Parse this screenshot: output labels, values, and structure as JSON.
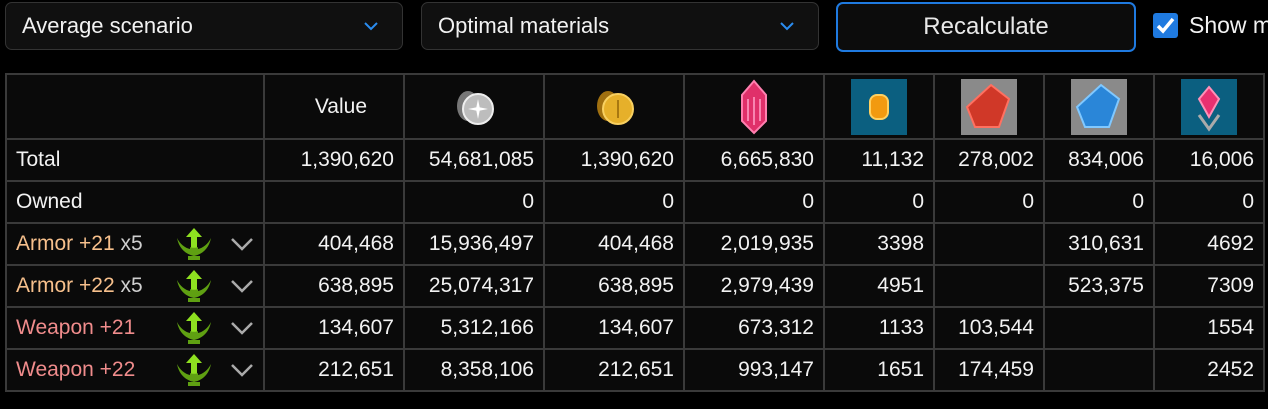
{
  "toolbar": {
    "scenario_select": "Average scenario",
    "materials_select": "Optimal materials",
    "recalculate_label": "Recalculate",
    "show_checkbox_label": "Show m",
    "show_checkbox_checked": true,
    "accent_color": "#1f7ae0"
  },
  "table": {
    "header": {
      "value_label": "Value",
      "icons": [
        "silver-coin-icon",
        "gold-coin-icon",
        "pink-crystal-icon",
        "orange-gem-icon",
        "red-crystal-icon",
        "blue-crystal-icon",
        "pink-gem-ornament-icon"
      ]
    },
    "rows": [
      {
        "label": "Total",
        "cells": [
          "1,390,620",
          "54,681,085",
          "1,390,620",
          "6,665,830",
          "11,132",
          "278,002",
          "834,006",
          "16,006"
        ]
      },
      {
        "label": "Owned",
        "cells": [
          "",
          "0",
          "0",
          "0",
          "0",
          "0",
          "0",
          "0"
        ]
      },
      {
        "label": "Armor +21",
        "mult": "x5",
        "type": "armor",
        "cells": [
          "404,468",
          "15,936,497",
          "404,468",
          "2,019,935",
          "3398",
          "",
          "310,631",
          "4692"
        ]
      },
      {
        "label": "Armor +22",
        "mult": "x5",
        "type": "armor",
        "cells": [
          "638,895",
          "25,074,317",
          "638,895",
          "2,979,439",
          "4951",
          "",
          "523,375",
          "7309"
        ]
      },
      {
        "label": "Weapon +21",
        "mult": "",
        "type": "weapon",
        "cells": [
          "134,607",
          "5,312,166",
          "134,607",
          "673,312",
          "1133",
          "103,544",
          "",
          "1554"
        ]
      },
      {
        "label": "Weapon +22",
        "mult": "",
        "type": "weapon",
        "cells": [
          "212,651",
          "8,358,106",
          "212,651",
          "993,147",
          "1651",
          "174,459",
          "",
          "2452"
        ]
      }
    ],
    "colors": {
      "armor": "#f7c08c",
      "weapon": "#f08c8c"
    }
  }
}
